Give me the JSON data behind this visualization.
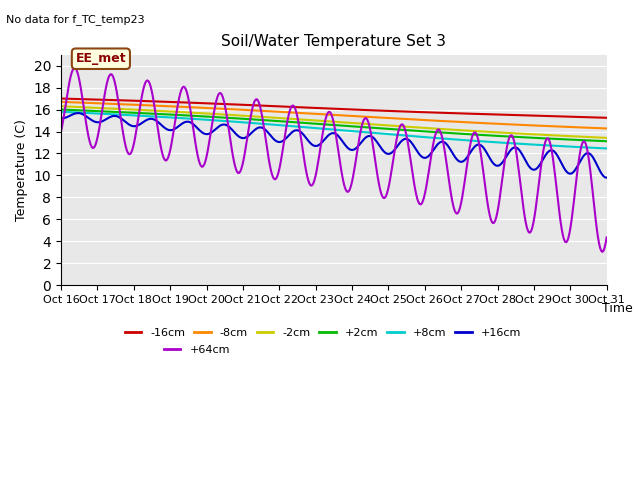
{
  "title": "Soil/Water Temperature Set 3",
  "subtitle": "No data for f_TC_temp23",
  "xlabel": "Time",
  "ylabel": "Temperature (C)",
  "annotation": "EE_met",
  "ylim": [
    0,
    21
  ],
  "yticks": [
    0,
    2,
    4,
    6,
    8,
    10,
    12,
    14,
    16,
    18,
    20
  ],
  "xtick_labels": [
    "Oct 16",
    "Oct 17",
    "Oct 18",
    "Oct 19",
    "Oct 20",
    "Oct 21",
    "Oct 22",
    "Oct 23",
    "Oct 24",
    "Oct 25",
    "Oct 26",
    "Oct 27",
    "Oct 28",
    "Oct 29",
    "Oct 30",
    "Oct 31"
  ],
  "series": {
    "-16cm": {
      "color": "#cc0000",
      "lw": 1.5
    },
    "-8cm": {
      "color": "#ff8800",
      "lw": 1.5
    },
    "-2cm": {
      "color": "#cccc00",
      "lw": 1.5
    },
    "+2cm": {
      "color": "#00bb00",
      "lw": 1.5
    },
    "+8cm": {
      "color": "#00cccc",
      "lw": 1.5
    },
    "+16cm": {
      "color": "#0000cc",
      "lw": 1.5
    },
    "+64cm": {
      "color": "#aa00cc",
      "lw": 1.5
    }
  },
  "bg_color": "#e8e8e8"
}
